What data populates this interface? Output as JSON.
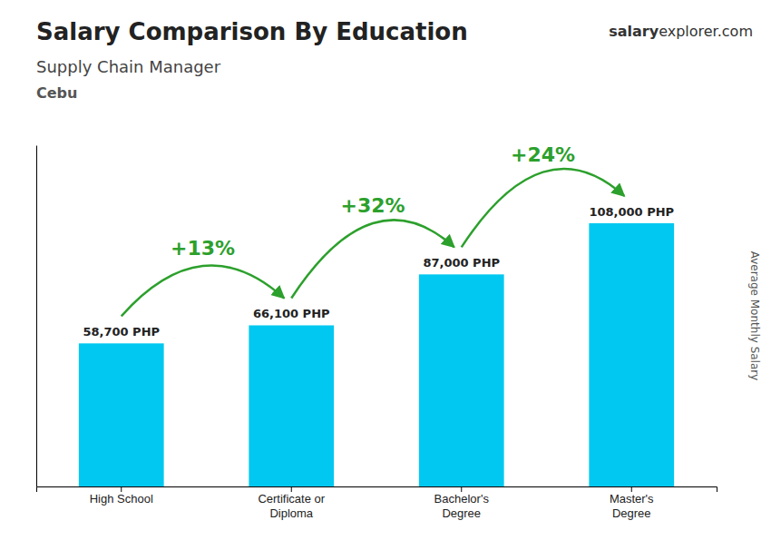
{
  "chart_data": {
    "type": "bar",
    "title": "Salary Comparison By Education",
    "subtitle": "Supply Chain Manager",
    "location": "Cebu",
    "website": [
      "salary",
      "explorer",
      ".com"
    ],
    "y_label": "Average Monthly Salary",
    "categories": [
      "High School",
      "Certificate or\nDiploma",
      "Bachelor's\nDegree",
      "Master's\nDegree"
    ],
    "values": [
      58700,
      66100,
      87000,
      108000
    ],
    "value_labels": [
      "58,700 PHP",
      "66,100 PHP",
      "87,000 PHP",
      "108,000 PHP"
    ],
    "data_labels": true,
    "color": "#00c8f0",
    "ylim": [
      0,
      140000
    ],
    "tick_labels": "x",
    "grid": false,
    "annotations": [
      {
        "text": "+13%",
        "from": "High School",
        "to": "Certificate or\nDiploma"
      },
      {
        "text": "+32%",
        "from": "Certificate or\nDiploma",
        "to": "Bachelor's\nDegree"
      },
      {
        "text": "+24%",
        "from": "Bachelor's\nDegree",
        "to": "Master's\nDegree"
      }
    ]
  }
}
